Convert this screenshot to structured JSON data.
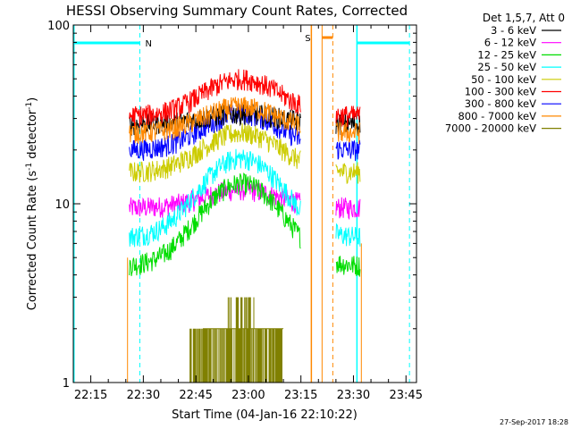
{
  "chart_data": {
    "type": "line",
    "title": "HESSI Observing Summary Count Rates, Corrected",
    "xlabel": "Start Time (04-Jan-16 22:10:22)",
    "ylabel_main": "Corrected Count Rate (s",
    "ylabel_sup": "-1",
    "ylabel_mid": " detector",
    "ylabel_sup2": "-1",
    "ylabel_end": ")",
    "yscale": "log",
    "xlim": [
      "22:10",
      "23:48"
    ],
    "ylim": [
      1,
      100
    ],
    "x_ticks": [
      "22:15",
      "22:30",
      "22:45",
      "23:00",
      "23:15",
      "23:30",
      "23:45"
    ],
    "y_ticks": [
      "1",
      "10",
      "100"
    ],
    "legend_title": "Det 1,5,7, Att 0",
    "legend_position": "right",
    "timestamp": "27-Sep-2017 18:28",
    "annotations": [
      {
        "label": "N",
        "color": "#00ffff",
        "time": "22:29"
      },
      {
        "label": "S",
        "color": "#ff8800",
        "time": "23:19"
      }
    ],
    "observing_windows": [
      {
        "start": "22:26",
        "end": "23:15"
      },
      {
        "start": "23:25",
        "end": "23:32"
      }
    ],
    "series": [
      {
        "name": "3 - 6 keV",
        "color": "#000000",
        "base": 28,
        "peak": 32
      },
      {
        "name": "6 - 12 keV",
        "color": "#ff00ff",
        "base": 9.5,
        "peak": 12
      },
      {
        "name": "12 - 25 keV",
        "color": "#00dd00",
        "base": 4.5,
        "peak": 13
      },
      {
        "name": "25 - 50 keV",
        "color": "#00ffff",
        "base": 6.5,
        "peak": 18
      },
      {
        "name": "50 - 100 keV",
        "color": "#cccc00",
        "base": 15,
        "peak": 25
      },
      {
        "name": "100 - 300 keV",
        "color": "#ff0000",
        "base": 31,
        "peak": 50
      },
      {
        "name": "300 - 800 keV",
        "color": "#0000ff",
        "base": 20,
        "peak": 32
      },
      {
        "name": "800 - 7000 keV",
        "color": "#ff8800",
        "base": 25,
        "peak": 35
      },
      {
        "name": "7000 - 20000 keV",
        "color": "#808000",
        "base": 1,
        "peak": 2.5
      }
    ]
  }
}
